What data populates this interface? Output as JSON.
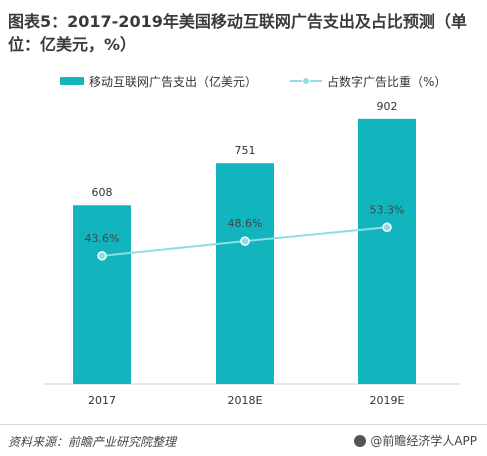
{
  "title": "图表5：2017-2019年美国移动互联网广告支出及占比预测（单位：亿美元，%）",
  "source": "资料来源：前瞻产业研究院整理",
  "brand": "@前瞻经济学人APP",
  "colors": {
    "bar": "#12B5BD",
    "line": "#8FDCE1",
    "marker": "#8FDCE1"
  },
  "chart_data": {
    "type": "bar+line",
    "categories": [
      "2017",
      "2018E",
      "2019E"
    ],
    "series": [
      {
        "name": "移动互联网广告支出（亿美元）",
        "type": "bar",
        "values": [
          608,
          751,
          902
        ],
        "labels": [
          "608",
          "751",
          "902"
        ]
      },
      {
        "name": "占数字广告比重（%）",
        "type": "line",
        "values": [
          43.6,
          48.6,
          53.3
        ],
        "labels": [
          "43.6%",
          "48.6%",
          "53.3%"
        ]
      }
    ],
    "bar_axis": [
      0,
      1000
    ],
    "line_axis": [
      0,
      100
    ],
    "legend_position": "top",
    "grid": false
  }
}
